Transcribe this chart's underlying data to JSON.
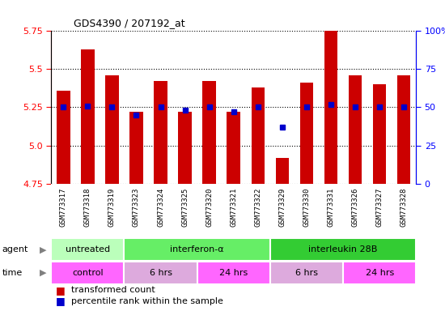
{
  "title": "GDS4390 / 207192_at",
  "samples": [
    "GSM773317",
    "GSM773318",
    "GSM773319",
    "GSM773323",
    "GSM773324",
    "GSM773325",
    "GSM773320",
    "GSM773321",
    "GSM773322",
    "GSM773329",
    "GSM773330",
    "GSM773331",
    "GSM773326",
    "GSM773327",
    "GSM773328"
  ],
  "transformed_counts": [
    5.36,
    5.63,
    5.46,
    5.22,
    5.42,
    5.22,
    5.42,
    5.22,
    5.38,
    4.92,
    5.41,
    5.75,
    5.46,
    5.4,
    5.46
  ],
  "percentile_ranks": [
    50,
    51,
    50,
    45,
    50,
    48,
    50,
    47,
    50,
    37,
    50,
    52,
    50,
    50,
    50
  ],
  "ylim_left": [
    4.75,
    5.75
  ],
  "yticks_left": [
    4.75,
    5.0,
    5.25,
    5.5,
    5.75
  ],
  "yticks_right": [
    0,
    25,
    50,
    75,
    100
  ],
  "bar_color": "#cc0000",
  "dot_color": "#0000cc",
  "agent_groups": [
    {
      "label": "untreated",
      "start": 0,
      "end": 3,
      "color": "#bbffbb"
    },
    {
      "label": "interferon-α",
      "start": 3,
      "end": 9,
      "color": "#66ee66"
    },
    {
      "label": "interleukin 28B",
      "start": 9,
      "end": 15,
      "color": "#33cc33"
    }
  ],
  "time_groups": [
    {
      "label": "control",
      "start": 0,
      "end": 3,
      "color": "#ff66ff"
    },
    {
      "label": "6 hrs",
      "start": 3,
      "end": 6,
      "color": "#ddaadd"
    },
    {
      "label": "24 hrs",
      "start": 6,
      "end": 9,
      "color": "#ff66ff"
    },
    {
      "label": "6 hrs",
      "start": 9,
      "end": 12,
      "color": "#ddaadd"
    },
    {
      "label": "24 hrs",
      "start": 12,
      "end": 15,
      "color": "#ff66ff"
    }
  ],
  "xlabel_bg": "#cccccc",
  "plot_bg": "#ffffff",
  "label_agent": "agent",
  "label_time": "time"
}
